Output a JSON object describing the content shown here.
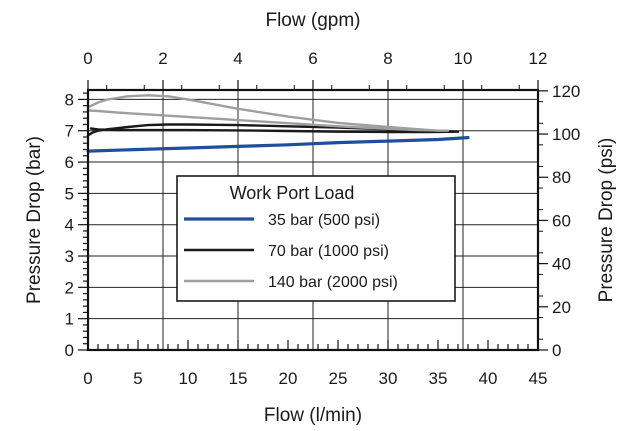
{
  "chart_data": {
    "type": "line",
    "x_bottom": {
      "label": "Flow (l/min)",
      "range": [
        0,
        45
      ],
      "ticks": [
        0,
        5,
        10,
        15,
        20,
        25,
        30,
        35,
        40,
        45
      ],
      "minor_step": 1
    },
    "x_top": {
      "label": "Flow (gpm)",
      "range": [
        0,
        12
      ],
      "ticks": [
        0,
        2,
        4,
        6,
        8,
        10,
        12
      ]
    },
    "y_left": {
      "label": "Pressure Drop (bar)",
      "range": [
        0,
        8.3
      ],
      "ticks": [
        0,
        1,
        2,
        3,
        4,
        5,
        6,
        7,
        8
      ],
      "minor_step": 0.2
    },
    "y_right": {
      "label": "Pressure Drop (psi)",
      "range": [
        0,
        120.4
      ],
      "ticks": [
        0,
        20,
        40,
        60,
        80,
        100,
        120
      ]
    },
    "grid": true,
    "legend": {
      "title": "Work Port Load",
      "placement": "center-left",
      "entries": [
        "35 bar (500 psi)",
        "70 bar (1000 psi)",
        "140 bar (2000 psi)"
      ]
    },
    "series": [
      {
        "name": "35 bar (500 psi)",
        "color": "#1f4e9e",
        "x": [
          0,
          5,
          10,
          15,
          20,
          25,
          30,
          35,
          38
        ],
        "y": [
          6.35,
          6.4,
          6.45,
          6.5,
          6.55,
          6.62,
          6.67,
          6.72,
          6.78
        ]
      },
      {
        "name": "70 bar (1000 psi)",
        "color": "#1a1a1a",
        "x": [
          0,
          0.5,
          1,
          2,
          4,
          6,
          8,
          10,
          15,
          20,
          25,
          30,
          34,
          37,
          34,
          30,
          25,
          20,
          15,
          10,
          6,
          3,
          1,
          0.3
        ],
        "y": [
          6.85,
          6.95,
          7.0,
          7.05,
          7.12,
          7.18,
          7.2,
          7.2,
          7.18,
          7.14,
          7.1,
          7.05,
          7.0,
          6.97,
          6.96,
          6.96,
          6.97,
          6.99,
          7.01,
          7.02,
          7.02,
          7.02,
          7.04,
          7.07
        ]
      },
      {
        "name": "140 bar (2000 psi)",
        "color": "#a09e9e",
        "x": [
          0,
          1,
          2,
          4,
          6,
          8,
          10,
          12,
          15,
          20,
          25,
          30,
          35,
          36,
          33,
          30,
          25,
          20,
          15,
          10,
          6,
          3,
          1,
          0
        ],
        "y": [
          7.75,
          7.9,
          8.0,
          8.1,
          8.13,
          8.1,
          8.0,
          7.88,
          7.7,
          7.45,
          7.25,
          7.12,
          7.0,
          7.0,
          7.02,
          7.06,
          7.14,
          7.24,
          7.34,
          7.44,
          7.52,
          7.58,
          7.63,
          7.65
        ]
      }
    ]
  }
}
